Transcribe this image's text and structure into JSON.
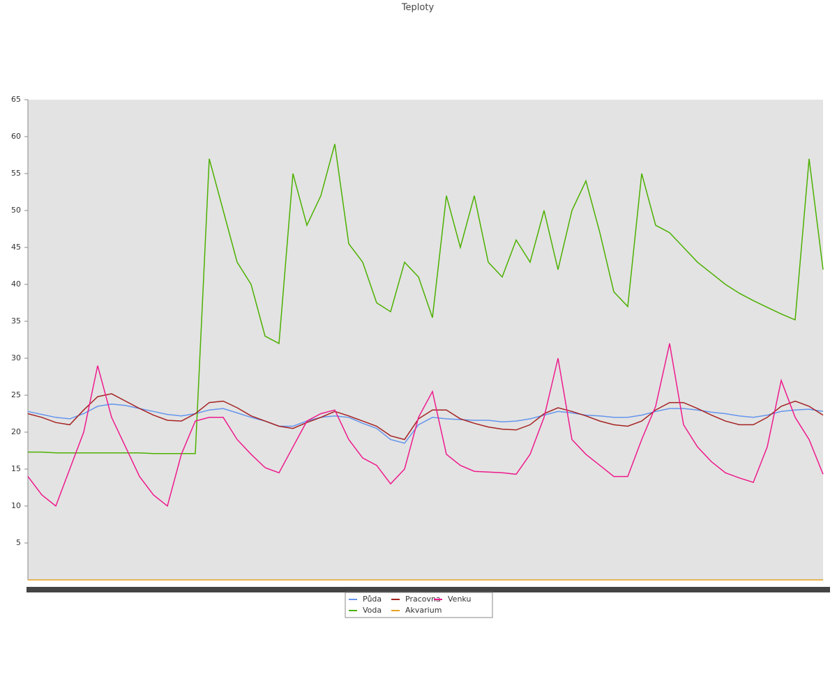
{
  "chart_data": {
    "type": "line",
    "title": "Teploty",
    "categories": [
      null,
      null,
      null,
      null,
      null,
      null,
      null,
      null,
      null,
      null,
      null,
      null,
      null,
      null,
      null,
      null,
      null,
      null,
      null,
      null,
      null,
      null,
      null,
      null,
      null,
      null,
      null,
      null,
      null,
      null,
      null,
      null,
      null,
      null,
      null,
      null,
      null,
      null,
      null,
      null,
      null,
      null,
      null,
      null,
      null,
      null,
      null,
      null,
      null,
      null,
      null,
      null,
      null,
      null,
      null,
      null,
      null,
      null
    ],
    "ylim": [
      0,
      65
    ],
    "yticks": [
      5,
      10,
      15,
      20,
      25,
      30,
      35,
      40,
      45,
      50,
      55,
      60,
      65
    ],
    "series": [
      {
        "name": "Půda",
        "color": "#6495ed",
        "values": [
          22.8,
          22.4,
          22,
          21.8,
          22.5,
          23.5,
          23.8,
          23.6,
          23.2,
          22.8,
          22.4,
          22.2,
          22.5,
          23,
          23.2,
          22.6,
          22,
          21.5,
          20.8,
          20.8,
          21.5,
          22,
          22.2,
          22,
          21.2,
          20.5,
          19,
          18.5,
          21,
          22,
          21.8,
          21.7,
          21.6,
          21.6,
          21.4,
          21.5,
          21.8,
          22.3,
          22.8,
          22.6,
          22.3,
          22.2,
          22,
          22,
          22.3,
          22.8,
          23.2,
          23.2,
          23,
          22.7,
          22.5,
          22.2,
          22,
          22.3,
          22.8,
          23,
          23.1,
          22.8
        ]
      },
      {
        "name": "Voda",
        "color": "#4cb000",
        "values": [
          17.3,
          17.3,
          17.2,
          17.2,
          17.2,
          17.2,
          17.2,
          17.2,
          17.2,
          17.1,
          17.1,
          17.1,
          17.1,
          57,
          50,
          43,
          40,
          33,
          32,
          55,
          48,
          52,
          59,
          45.5,
          43,
          37.5,
          36.3,
          43,
          41,
          35.5,
          52,
          45,
          52,
          43,
          41,
          46,
          43,
          50,
          42,
          50,
          54,
          47,
          39,
          37,
          55,
          48,
          47,
          45,
          43,
          41.5,
          40,
          38.8,
          37.8,
          36.9,
          36,
          35.2,
          57,
          42
        ]
      },
      {
        "name": "Pracovna",
        "color": "#a52222",
        "values": [
          22.5,
          22,
          21.3,
          21,
          23,
          24.8,
          25.2,
          24.2,
          23.2,
          22.3,
          21.6,
          21.5,
          22.5,
          24,
          24.2,
          23.3,
          22.2,
          21.5,
          20.8,
          20.5,
          21.3,
          22,
          22.8,
          22.2,
          21.5,
          20.8,
          19.5,
          19,
          21.8,
          23,
          23,
          21.8,
          21.2,
          20.7,
          20.4,
          20.3,
          21,
          22.5,
          23.3,
          22.8,
          22.2,
          21.5,
          21,
          20.8,
          21.5,
          23,
          24,
          24,
          23.2,
          22.3,
          21.5,
          21,
          21,
          22,
          23.5,
          24.2,
          23.5,
          22.3
        ]
      },
      {
        "name": "Akvarium",
        "color": "#e8a020",
        "values": [
          0,
          0,
          0,
          0,
          0,
          0,
          0,
          0,
          0,
          0,
          0,
          0,
          0,
          0,
          0,
          0,
          0,
          0,
          0,
          0,
          0,
          0,
          0,
          0,
          0,
          0,
          0,
          0,
          0,
          0,
          0,
          0,
          0,
          0,
          0,
          0,
          0,
          0,
          0,
          0,
          0,
          0,
          0,
          0,
          0,
          0,
          0,
          0,
          0,
          0,
          0,
          0,
          0,
          0,
          0,
          0,
          0,
          0
        ]
      },
      {
        "name": "Venku",
        "color": "#ee1a8c",
        "values": [
          14,
          11.5,
          10,
          15,
          20,
          29,
          22,
          18,
          14,
          11.5,
          10,
          17,
          21.5,
          22,
          22,
          19,
          17,
          15.2,
          14.5,
          18,
          21.5,
          22.5,
          23,
          19,
          16.5,
          15.5,
          13,
          15,
          22,
          25.5,
          17,
          15.5,
          14.7,
          14.6,
          14.5,
          14.3,
          17,
          22,
          30,
          19,
          17,
          15.5,
          14,
          14,
          19,
          23.5,
          32,
          21,
          18,
          16,
          14.5,
          13.8,
          13.2,
          18,
          27,
          22,
          19,
          14.3
        ]
      }
    ]
  }
}
